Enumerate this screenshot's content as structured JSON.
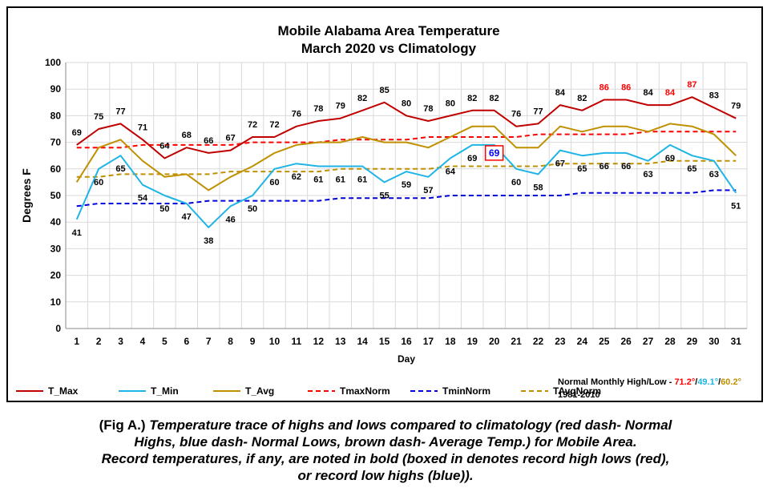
{
  "colors": {
    "tmax": "#c00000",
    "tmin": "#1fb4e6",
    "tavg": "#bf9000",
    "tmaxnorm": "#ff0000",
    "tminnorm": "#0000dd",
    "tavgnorm": "#bf9000",
    "record_high": "#ff0000",
    "record_low_high": "#0000ff",
    "grid": "#d9d9d9"
  },
  "chart_data": {
    "type": "line",
    "title": "Mobile Alabama Area Temperature",
    "subtitle": "March 2020 vs Climatology",
    "xlabel": "Day",
    "ylabel": "Degrees F",
    "ylim": [
      0,
      100
    ],
    "yticks": [
      0,
      10,
      20,
      30,
      40,
      50,
      60,
      70,
      80,
      90,
      100
    ],
    "grid": true,
    "legend_position": "bottom-left",
    "x": [
      1,
      2,
      3,
      4,
      5,
      6,
      7,
      8,
      9,
      10,
      11,
      12,
      13,
      14,
      15,
      16,
      17,
      18,
      19,
      20,
      21,
      22,
      23,
      24,
      25,
      26,
      27,
      28,
      29,
      30,
      31
    ],
    "series": [
      {
        "name": "T_Max",
        "style": "solid",
        "color_key": "tmax",
        "values": [
          69,
          75,
          77,
          71,
          64,
          68,
          66,
          67,
          72,
          72,
          76,
          78,
          79,
          82,
          85,
          80,
          78,
          80,
          82,
          82,
          76,
          77,
          84,
          82,
          86,
          86,
          84,
          84,
          87,
          83,
          79
        ],
        "labels": [
          "69",
          "75",
          "77",
          "71",
          "64",
          "68",
          "66",
          "67",
          "72",
          "72",
          "76",
          "78",
          "79",
          "82",
          "85",
          "80",
          "78",
          "80",
          "82",
          "82",
          "76",
          "77",
          "84",
          "82",
          "86",
          "86",
          "84",
          "84",
          "87",
          "83",
          "79"
        ]
      },
      {
        "name": "T_Min",
        "style": "solid",
        "color_key": "tmin",
        "values": [
          41,
          60,
          65,
          54,
          50,
          47,
          38,
          46,
          50,
          60,
          62,
          61,
          61,
          61,
          55,
          59,
          57,
          64,
          69,
          69,
          60,
          58,
          67,
          65,
          66,
          66,
          63,
          69,
          65,
          63,
          51
        ],
        "labels": [
          "41",
          "60",
          "65",
          "54",
          "50",
          "47",
          "38",
          "46",
          "50",
          "60",
          "62",
          "61",
          "61",
          "61",
          "55",
          "59",
          "57",
          "64",
          "69",
          "69",
          "60",
          "58",
          "67",
          "65",
          "66",
          "66",
          "63",
          "69",
          "65",
          "63",
          "51"
        ]
      },
      {
        "name": "T_Avg",
        "style": "solid",
        "color_key": "tavg",
        "values": [
          55,
          68,
          71,
          63,
          57,
          58,
          52,
          57,
          61,
          66,
          69,
          70,
          70,
          72,
          70,
          70,
          68,
          72,
          76,
          76,
          68,
          68,
          76,
          74,
          76,
          76,
          74,
          77,
          76,
          73,
          65
        ]
      },
      {
        "name": "TmaxNorm",
        "style": "dashed",
        "color_key": "tmaxnorm",
        "values": [
          68,
          68,
          68,
          69,
          69,
          69,
          69,
          69,
          70,
          70,
          70,
          70,
          71,
          71,
          71,
          71,
          72,
          72,
          72,
          72,
          72,
          73,
          73,
          73,
          73,
          73,
          74,
          74,
          74,
          74,
          74
        ]
      },
      {
        "name": "TminNorm",
        "style": "dashed",
        "color_key": "tminnorm",
        "values": [
          46,
          47,
          47,
          47,
          47,
          47,
          48,
          48,
          48,
          48,
          48,
          48,
          49,
          49,
          49,
          49,
          49,
          50,
          50,
          50,
          50,
          50,
          50,
          51,
          51,
          51,
          51,
          51,
          51,
          52,
          52
        ]
      },
      {
        "name": "TAvgNorm",
        "style": "dashed",
        "color_key": "tavgnorm",
        "values": [
          57,
          57,
          58,
          58,
          58,
          58,
          58,
          59,
          59,
          59,
          59,
          59,
          60,
          60,
          60,
          60,
          60,
          61,
          61,
          61,
          61,
          61,
          62,
          62,
          62,
          62,
          62,
          63,
          63,
          63,
          63
        ]
      }
    ],
    "record_highs_days": [
      25,
      26,
      28,
      29
    ],
    "record_low_high_days": [
      20
    ],
    "normals_note": {
      "prefix": "Normal Monthly High/Low - ",
      "high": "71.2°",
      "sep1": "/",
      "low": "49.1°",
      "sep2": "/",
      "avg": "60.2°",
      "period": "1981-2010"
    }
  },
  "caption": {
    "prefix": "(Fig A.) ",
    "line1": "Temperature trace of highs and lows compared to climatology (red dash- Normal",
    "line2": "Highs, blue dash- Normal Lows, brown dash- Average Temp.) for Mobile Area.",
    "line3": "Record temperatures, if any, are noted in bold (boxed in denotes record high lows (red),",
    "line4": "or record low highs (blue))."
  }
}
